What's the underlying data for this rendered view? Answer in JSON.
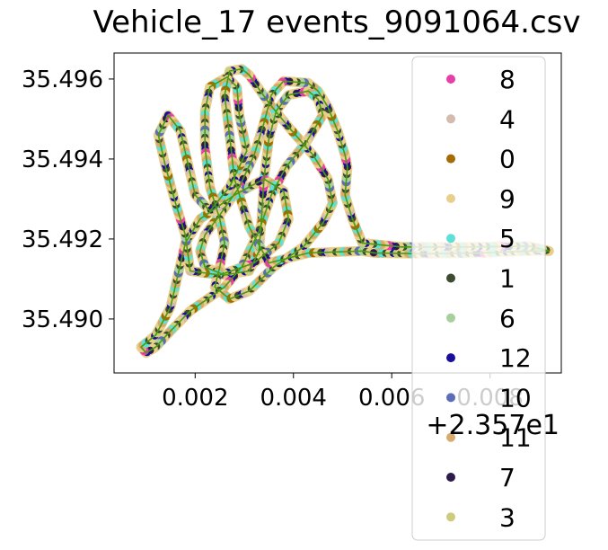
{
  "chart_data": {
    "type": "scatter",
    "title": "Vehicle_17 events_9091064.csv",
    "xlabel": "",
    "ylabel": "",
    "x_offset_label": "+2.357e1",
    "xlim": [
      0.00035,
      0.00945
    ],
    "ylim": [
      35.48865,
      35.49665
    ],
    "x_ticks": [
      {
        "value": 0.002,
        "label": "0.002"
      },
      {
        "value": 0.004,
        "label": "0.004"
      },
      {
        "value": 0.006,
        "label": "0.006"
      },
      {
        "value": 0.008,
        "label": "0.008"
      }
    ],
    "y_ticks": [
      {
        "value": 35.49,
        "label": "35.490"
      },
      {
        "value": 35.492,
        "label": "35.492"
      },
      {
        "value": 35.494,
        "label": "35.494"
      },
      {
        "value": 35.496,
        "label": "35.496"
      }
    ],
    "grid": false,
    "legend_placement": "right",
    "route_line_color": "#4a9a10",
    "series": [
      {
        "name": "8",
        "color": "#e83ea8"
      },
      {
        "name": "4",
        "color": "#d3bcae"
      },
      {
        "name": "0",
        "color": "#a56a00"
      },
      {
        "name": "9",
        "color": "#e8d08c"
      },
      {
        "name": "5",
        "color": "#5ce0d8"
      },
      {
        "name": "1",
        "color": "#3f4a33"
      },
      {
        "name": "6",
        "color": "#a8d09c"
      },
      {
        "name": "12",
        "color": "#1a0e9c"
      },
      {
        "name": "10",
        "color": "#5c6cb8"
      },
      {
        "name": "11",
        "color": "#d8aa6c"
      },
      {
        "name": "7",
        "color": "#2c1c4c"
      },
      {
        "name": "3",
        "color": "#cccc7c"
      }
    ],
    "route": [
      [
        0.00565,
        35.49165
      ],
      [
        0.0067,
        35.49163
      ],
      [
        0.0078,
        35.49165
      ],
      [
        0.0088,
        35.4917
      ],
      [
        0.0092,
        35.4917
      ],
      [
        0.0088,
        35.49182
      ],
      [
        0.0075,
        35.4918
      ],
      [
        0.0062,
        35.4918
      ],
      [
        0.0054,
        35.4919
      ],
      [
        0.0052,
        35.4925
      ],
      [
        0.00505,
        35.4931
      ],
      [
        0.0051,
        35.4938
      ],
      [
        0.00505,
        35.4941
      ],
      [
        0.0049,
        35.4947
      ],
      [
        0.0047,
        35.4953
      ],
      [
        0.0045,
        35.4957
      ],
      [
        0.0043,
        35.4959
      ],
      [
        0.0038,
        35.49595
      ],
      [
        0.00355,
        35.4956
      ],
      [
        0.0034,
        35.4949
      ],
      [
        0.0032,
        35.4941
      ],
      [
        0.0029,
        35.4933
      ],
      [
        0.0025,
        35.4926
      ],
      [
        0.0022,
        35.4921
      ],
      [
        0.0021,
        35.4917
      ],
      [
        0.0022,
        35.4913
      ],
      [
        0.0026,
        35.4911
      ],
      [
        0.0031,
        35.4912
      ],
      [
        0.0033,
        35.4917
      ],
      [
        0.00335,
        35.4925
      ],
      [
        0.0034,
        35.4935
      ],
      [
        0.0035,
        35.4945
      ],
      [
        0.00365,
        35.4952
      ],
      [
        0.0039,
        35.4956
      ],
      [
        0.0043,
        35.4957
      ],
      [
        0.0045,
        35.4955
      ],
      [
        0.0046,
        35.4951
      ],
      [
        0.00425,
        35.4944
      ],
      [
        0.00385,
        35.4938
      ],
      [
        0.00355,
        35.4931
      ],
      [
        0.0033,
        35.4922
      ],
      [
        0.00295,
        35.4913
      ],
      [
        0.0026,
        35.4908
      ],
      [
        0.00225,
        35.4905
      ],
      [
        0.0019,
        35.4902
      ],
      [
        0.0015,
        35.4897
      ],
      [
        0.0012,
        35.4893
      ],
      [
        0.001,
        35.48915
      ],
      [
        0.0009,
        35.4893
      ],
      [
        0.0012,
        35.4896
      ],
      [
        0.0015,
        35.4903
      ],
      [
        0.00165,
        35.4911
      ],
      [
        0.0018,
        35.4919
      ],
      [
        0.0021,
        35.4925
      ],
      [
        0.0028,
        35.4931
      ],
      [
        0.0034,
        35.4935
      ],
      [
        0.0038,
        35.4932
      ],
      [
        0.0039,
        35.4925
      ],
      [
        0.0037,
        35.4919
      ],
      [
        0.0032,
        35.4914
      ],
      [
        0.0025,
        35.4911
      ],
      [
        0.0019,
        35.4912
      ],
      [
        0.0018,
        35.4921
      ],
      [
        0.0016,
        35.4929
      ],
      [
        0.0014,
        35.4938
      ],
      [
        0.00125,
        35.4946
      ],
      [
        0.00145,
        35.4951
      ],
      [
        0.0017,
        35.4947
      ],
      [
        0.00185,
        35.4939
      ],
      [
        0.002,
        35.4931
      ],
      [
        0.0023,
        35.4927
      ],
      [
        0.0027,
        35.4933
      ],
      [
        0.00305,
        35.4942
      ],
      [
        0.0029,
        35.4951
      ],
      [
        0.00285,
        35.4958
      ],
      [
        0.00265,
        35.49605
      ],
      [
        0.0023,
        35.4958
      ],
      [
        0.0022,
        35.4952
      ],
      [
        0.0022,
        35.4943
      ],
      [
        0.0023,
        35.4933
      ],
      [
        0.0025,
        35.4925
      ],
      [
        0.0026,
        35.4919
      ],
      [
        0.0025,
        35.4913
      ],
      [
        0.0024,
        35.4908
      ],
      [
        0.0027,
        35.4905
      ],
      [
        0.0031,
        35.4907
      ],
      [
        0.0036,
        35.4913
      ],
      [
        0.0042,
        35.4918
      ],
      [
        0.0046,
        35.4924
      ],
      [
        0.0048,
        35.4929
      ],
      [
        0.0047,
        35.4935
      ],
      [
        0.0044,
        35.4941
      ],
      [
        0.0039,
        35.4948
      ],
      [
        0.0035,
        35.4954
      ],
      [
        0.0031,
        35.4961
      ],
      [
        0.00295,
        35.49625
      ],
      [
        0.0027,
        35.4962
      ],
      [
        0.0026,
        35.4956
      ],
      [
        0.0027,
        35.4946
      ],
      [
        0.0028,
        35.4935
      ],
      [
        0.0031,
        35.4923
      ],
      [
        0.0035,
        35.4914
      ],
      [
        0.0043,
        35.49165
      ],
      [
        0.0054,
        35.4917
      ],
      [
        0.00565,
        35.49165
      ]
    ]
  }
}
